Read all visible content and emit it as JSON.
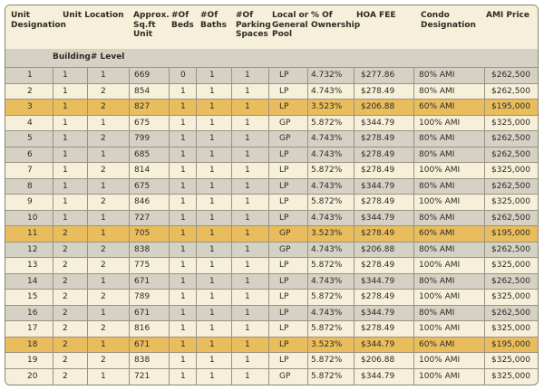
{
  "headers": {
    "unit_designation": "Unit Designation",
    "unit_location": "Unit Location",
    "sqft": "Approx. Sq.ft Unit",
    "beds": "#Of Beds",
    "baths": "#Of Baths",
    "parking": "#Of Parking Spaces",
    "pool": "Local or General Pool",
    "ownership": "% Of Ownership",
    "hoa": "HOA FEE",
    "condo": "Condo Designation",
    "price": "AMI Price"
  },
  "subheader": "Building# Level",
  "colors": {
    "cream": "#f6efd9",
    "gray": "#d6d1c5",
    "yellow": "#e9bd5d",
    "border": "#9b9382"
  },
  "rows": [
    {
      "unit": "1",
      "building": "1",
      "level": "1",
      "sqft": "669",
      "beds": "0",
      "baths": "1",
      "parking": "1",
      "pool": "LP",
      "ownership": "4.732%",
      "hoa": "$277.86",
      "condo": "80% AMI",
      "price": "$262,500",
      "bg": "gray"
    },
    {
      "unit": "2",
      "building": "1",
      "level": "2",
      "sqft": "854",
      "beds": "1",
      "baths": "1",
      "parking": "1",
      "pool": "LP",
      "ownership": "4.743%",
      "hoa": "$278.49",
      "condo": "80% AMI",
      "price": "$262,500",
      "bg": "cream"
    },
    {
      "unit": "3",
      "building": "1",
      "level": "2",
      "sqft": "827",
      "beds": "1",
      "baths": "1",
      "parking": "1",
      "pool": "LP",
      "ownership": "3.523%",
      "hoa": "$206.88",
      "condo": "60% AMI",
      "price": "$195,000",
      "bg": "yellow"
    },
    {
      "unit": "4",
      "building": "1",
      "level": "1",
      "sqft": "675",
      "beds": "1",
      "baths": "1",
      "parking": "1",
      "pool": "GP",
      "ownership": "5.872%",
      "hoa": "$344.79",
      "condo": "100% AMI",
      "price": "$325,000",
      "bg": "cream"
    },
    {
      "unit": "5",
      "building": "1",
      "level": "2",
      "sqft": "799",
      "beds": "1",
      "baths": "1",
      "parking": "1",
      "pool": "GP",
      "ownership": "4.743%",
      "hoa": "$278.49",
      "condo": "80% AMI",
      "price": "$262,500",
      "bg": "gray"
    },
    {
      "unit": "6",
      "building": "1",
      "level": "1",
      "sqft": "685",
      "beds": "1",
      "baths": "1",
      "parking": "1",
      "pool": "LP",
      "ownership": "4.743%",
      "hoa": "$278.49",
      "condo": "80% AMI",
      "price": "$262,500",
      "bg": "gray"
    },
    {
      "unit": "7",
      "building": "1",
      "level": "2",
      "sqft": "814",
      "beds": "1",
      "baths": "1",
      "parking": "1",
      "pool": "LP",
      "ownership": "5.872%",
      "hoa": "$278.49",
      "condo": "100% AMI",
      "price": "$325,000",
      "bg": "cream"
    },
    {
      "unit": "8",
      "building": "1",
      "level": "1",
      "sqft": "675",
      "beds": "1",
      "baths": "1",
      "parking": "1",
      "pool": "LP",
      "ownership": "4.743%",
      "hoa": "$344.79",
      "condo": "80% AMI",
      "price": "$262,500",
      "bg": "gray"
    },
    {
      "unit": "9",
      "building": "1",
      "level": "2",
      "sqft": "846",
      "beds": "1",
      "baths": "1",
      "parking": "1",
      "pool": "LP",
      "ownership": "5.872%",
      "hoa": "$278.49",
      "condo": "100% AMI",
      "price": "$325,000",
      "bg": "cream"
    },
    {
      "unit": "10",
      "building": "1",
      "level": "1",
      "sqft": "727",
      "beds": "1",
      "baths": "1",
      "parking": "1",
      "pool": "LP",
      "ownership": "4.743%",
      "hoa": "$344.79",
      "condo": "80% AMI",
      "price": "$262,500",
      "bg": "gray"
    },
    {
      "unit": "11",
      "building": "2",
      "level": "1",
      "sqft": "705",
      "beds": "1",
      "baths": "1",
      "parking": "1",
      "pool": "GP",
      "ownership": "3.523%",
      "hoa": "$278.49",
      "condo": "60% AMI",
      "price": "$195,000",
      "bg": "yellow"
    },
    {
      "unit": "12",
      "building": "2",
      "level": "2",
      "sqft": "838",
      "beds": "1",
      "baths": "1",
      "parking": "1",
      "pool": "GP",
      "ownership": "4.743%",
      "hoa": "$206.88",
      "condo": "80% AMI",
      "price": "$262,500",
      "bg": "gray"
    },
    {
      "unit": "13",
      "building": "2",
      "level": "2",
      "sqft": "775",
      "beds": "1",
      "baths": "1",
      "parking": "1",
      "pool": "LP",
      "ownership": "5.872%",
      "hoa": "$278.49",
      "condo": "100% AMI",
      "price": "$325,000",
      "bg": "cream"
    },
    {
      "unit": "14",
      "building": "2",
      "level": "1",
      "sqft": "671",
      "beds": "1",
      "baths": "1",
      "parking": "1",
      "pool": "LP",
      "ownership": "4.743%",
      "hoa": "$344.79",
      "condo": "80% AMI",
      "price": "$262,500",
      "bg": "gray"
    },
    {
      "unit": "15",
      "building": "2",
      "level": "2",
      "sqft": "789",
      "beds": "1",
      "baths": "1",
      "parking": "1",
      "pool": "LP",
      "ownership": "5.872%",
      "hoa": "$278.49",
      "condo": "100% AMI",
      "price": "$325,000",
      "bg": "cream"
    },
    {
      "unit": "16",
      "building": "2",
      "level": "1",
      "sqft": "671",
      "beds": "1",
      "baths": "1",
      "parking": "1",
      "pool": "LP",
      "ownership": "4.743%",
      "hoa": "$344.79",
      "condo": "80% AMI",
      "price": "$262,500",
      "bg": "gray"
    },
    {
      "unit": "17",
      "building": "2",
      "level": "2",
      "sqft": "816",
      "beds": "1",
      "baths": "1",
      "parking": "1",
      "pool": "LP",
      "ownership": "5.872%",
      "hoa": "$278.49",
      "condo": "100% AMI",
      "price": "$325,000",
      "bg": "cream"
    },
    {
      "unit": "18",
      "building": "2",
      "level": "1",
      "sqft": "671",
      "beds": "1",
      "baths": "1",
      "parking": "1",
      "pool": "LP",
      "ownership": "3.523%",
      "hoa": "$344.79",
      "condo": "60% AMI",
      "price": "$195,000",
      "bg": "yellow"
    },
    {
      "unit": "19",
      "building": "2",
      "level": "2",
      "sqft": "838",
      "beds": "1",
      "baths": "1",
      "parking": "1",
      "pool": "LP",
      "ownership": "5.872%",
      "hoa": "$206.88",
      "condo": "100% AMI",
      "price": "$325,000",
      "bg": "cream"
    },
    {
      "unit": "20",
      "building": "2",
      "level": "1",
      "sqft": "721",
      "beds": "1",
      "baths": "1",
      "parking": "1",
      "pool": "GP",
      "ownership": "5.872%",
      "hoa": "$344.79",
      "condo": "100% AMI",
      "price": "$325,000",
      "bg": "cream"
    }
  ]
}
